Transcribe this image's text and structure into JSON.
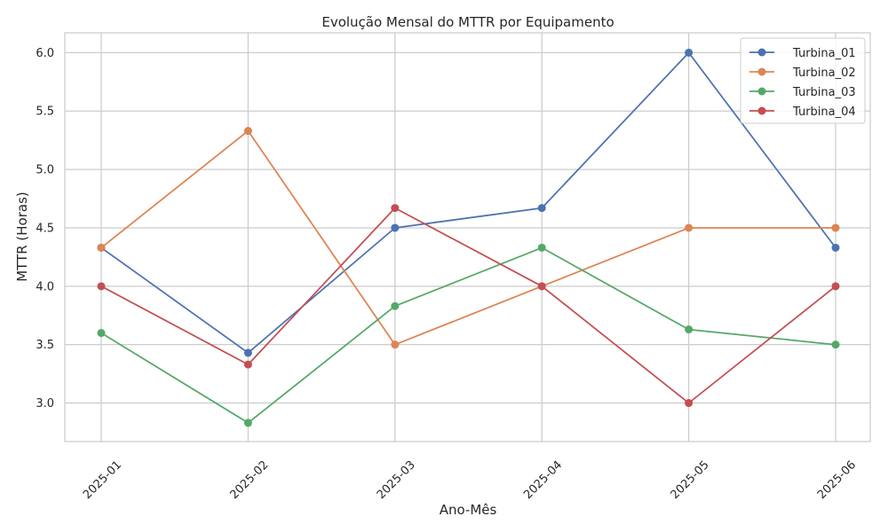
{
  "chart_data": {
    "type": "line",
    "title": "Evolução Mensal do MTTR por Equipamento",
    "xlabel": "Ano-Mês",
    "ylabel": "MTTR (Horas)",
    "categories": [
      "2025-01",
      "2025-02",
      "2025-03",
      "2025-04",
      "2025-05",
      "2025-06"
    ],
    "ylim": [
      2.67,
      6.17
    ],
    "yticks": [
      "3.0",
      "3.5",
      "4.0",
      "4.5",
      "5.0",
      "5.5",
      "6.0"
    ],
    "grid": true,
    "legend_position": "top-right",
    "series": [
      {
        "name": "Turbina_01",
        "color": "#4c72b0",
        "values": [
          4.33,
          3.43,
          4.5,
          4.67,
          6.0,
          4.33
        ]
      },
      {
        "name": "Turbina_02",
        "color": "#dd8452",
        "values": [
          4.33,
          5.33,
          3.5,
          4.0,
          4.5,
          4.5
        ]
      },
      {
        "name": "Turbina_03",
        "color": "#55a868",
        "values": [
          3.6,
          2.83,
          3.83,
          4.33,
          3.63,
          3.5
        ]
      },
      {
        "name": "Turbina_04",
        "color": "#c44e52",
        "values": [
          4.0,
          3.33,
          4.67,
          4.0,
          3.0,
          4.0
        ]
      }
    ]
  }
}
